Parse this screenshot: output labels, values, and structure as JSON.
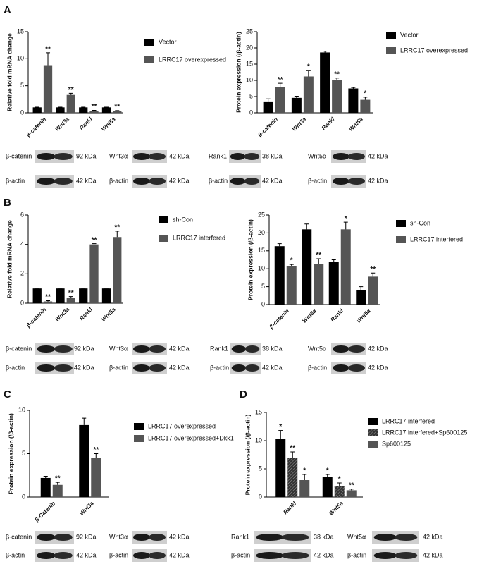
{
  "panels": [
    "A",
    "B",
    "C",
    "D"
  ],
  "chart_data": [
    {
      "type": "bar",
      "y_label": "Relative fold mRNA change",
      "categories": [
        "β-catenin",
        "Wnt3a",
        "Rankl",
        "Wnt5a"
      ],
      "ylim": [
        0,
        15
      ],
      "yticks": [
        0,
        5,
        10,
        15
      ],
      "series": [
        {
          "name": "Vector",
          "color": "#000000",
          "values": [
            1,
            1,
            1,
            1
          ],
          "errors": [
            0.05,
            0.05,
            0.05,
            0.05
          ]
        },
        {
          "name": "LRRC17 overexpressed",
          "color": "#555555",
          "values": [
            8.8,
            3.3,
            0.35,
            0.3
          ],
          "errors": [
            2.3,
            0.3,
            0.1,
            0.1
          ],
          "annotations": [
            "**",
            "**",
            "**",
            "**"
          ]
        }
      ]
    },
    {
      "type": "bar",
      "y_label": "Protein expression (/β-actin)",
      "categories": [
        "β-catenin",
        "Wnt3a",
        "Rankl",
        "Wnt5a"
      ],
      "ylim": [
        0,
        25
      ],
      "yticks": [
        0,
        5,
        10,
        15,
        20,
        25
      ],
      "series": [
        {
          "name": "Vector",
          "color": "#000000",
          "values": [
            3.5,
            4.6,
            18.6,
            7.5
          ],
          "errors": [
            0.8,
            0.5,
            0.4,
            0.3
          ]
        },
        {
          "name": "LRRC17 overexpressed",
          "color": "#555555",
          "values": [
            8,
            11.2,
            10,
            4
          ],
          "errors": [
            1.1,
            1.9,
            0.7,
            0.8
          ],
          "annotations": [
            "**",
            "*",
            "**",
            "*"
          ]
        }
      ]
    },
    {
      "type": "bar",
      "y_label": "Relative fold mRNA change",
      "categories": [
        "β-catenin",
        "Wnt3a",
        "Rankl",
        "Wnt5a"
      ],
      "ylim": [
        0,
        6
      ],
      "yticks": [
        0,
        2,
        4,
        6
      ],
      "series": [
        {
          "name": "sh-Con",
          "color": "#000000",
          "values": [
            1,
            1,
            1,
            1
          ],
          "errors": [
            0.02,
            0.02,
            0.02,
            0.02
          ]
        },
        {
          "name": "LRRC17 interfered",
          "color": "#555555",
          "values": [
            0.12,
            0.35,
            4,
            4.5
          ],
          "errors": [
            0.05,
            0.1,
            0.05,
            0.4
          ],
          "annotations": [
            "**",
            "**",
            "**",
            "**"
          ]
        }
      ]
    },
    {
      "type": "bar",
      "y_label": "Protein expression (/β-actin)",
      "categories": [
        "β-catenin",
        "Wnt3a",
        "Rankl",
        "Wnt5a"
      ],
      "ylim": [
        0,
        25
      ],
      "yticks": [
        0,
        5,
        10,
        15,
        20,
        25
      ],
      "series": [
        {
          "name": "sh-Con",
          "color": "#000000",
          "values": [
            16.3,
            21,
            12,
            4
          ],
          "errors": [
            0.7,
            1.5,
            0.5,
            1
          ]
        },
        {
          "name": "LRRC17 interfered",
          "color": "#555555",
          "values": [
            10.7,
            11.3,
            21,
            7.8
          ],
          "errors": [
            0.5,
            1.5,
            2,
            1
          ],
          "annotations": [
            "*",
            "**",
            "*",
            "**"
          ]
        }
      ]
    },
    {
      "type": "bar",
      "y_label": "Protein expression (/β-actin)",
      "categories": [
        "β-Catenin",
        "Wnt3a"
      ],
      "ylim": [
        0,
        10
      ],
      "yticks": [
        0,
        5,
        10
      ],
      "series": [
        {
          "name": "LRRC17 overexpressed",
          "color": "#000000",
          "values": [
            2.2,
            8.3
          ],
          "errors": [
            0.2,
            0.8
          ]
        },
        {
          "name": "LRRC17 overexpressed+Dkk1",
          "color": "#555555",
          "values": [
            1.4,
            4.5
          ],
          "errors": [
            0.3,
            0.5
          ],
          "annotations": [
            "**",
            "**"
          ]
        }
      ]
    },
    {
      "type": "bar",
      "y_label": "Protein expression (/β-actin)",
      "categories": [
        "Rankl",
        "Wnt5a"
      ],
      "ylim": [
        0,
        15
      ],
      "yticks": [
        0,
        5,
        10,
        15
      ],
      "series": [
        {
          "name": "LRRC17 interfered",
          "color": "#000000",
          "values": [
            10.3,
            3.5
          ],
          "errors": [
            1.5,
            0.5
          ],
          "annotations": [
            "*",
            "*"
          ]
        },
        {
          "name": "LRRC17 interfered+Sp600125",
          "color": "#333333",
          "hatch": true,
          "values": [
            7,
            2
          ],
          "errors": [
            1,
            0.5
          ],
          "annotations": [
            "**",
            "*"
          ]
        },
        {
          "name": "Sp600125",
          "color": "#555555",
          "values": [
            3,
            1.2
          ],
          "errors": [
            1,
            0.2
          ],
          "annotations": [
            "*",
            "**"
          ]
        }
      ]
    }
  ],
  "blots": [
    {
      "top": [
        {
          "name": "β-catenin",
          "kda": "92 kDa"
        },
        {
          "name": "Wnt3α",
          "kda": "42 kDa"
        },
        {
          "name": "Rank1",
          "kda": "38 kDa"
        },
        {
          "name": "Wnt5α",
          "kda": "42 kDa"
        }
      ],
      "bottom": [
        {
          "name": "β-actin",
          "kda": "42 kDa"
        },
        {
          "name": "β-actin",
          "kda": "42 kDa"
        },
        {
          "name": "β-actin",
          "kda": "42 kDa"
        },
        {
          "name": "β-actin",
          "kda": "42 kDa"
        }
      ]
    },
    {
      "top": [
        {
          "name": "β-catenin",
          "kda": "92 kDa"
        },
        {
          "name": "Wnt3α",
          "kda": "42 kDa"
        },
        {
          "name": "Rank1",
          "kda": "38 kDa"
        },
        {
          "name": "Wnt5α",
          "kda": "42 kDa"
        }
      ],
      "bottom": [
        {
          "name": "β-actin",
          "kda": "42 kDa"
        },
        {
          "name": "β-actin",
          "kda": "42 kDa"
        },
        {
          "name": "β-actin",
          "kda": "42 kDa"
        },
        {
          "name": "β-actin",
          "kda": "42 kDa"
        }
      ]
    },
    {
      "top": [
        {
          "name": "β-catenin",
          "kda": "92 kDa"
        },
        {
          "name": "Wnt3α",
          "kda": "42 kDa"
        },
        {
          "name": "Rank1",
          "kda": "38 kDa"
        },
        {
          "name": "Wnt5α",
          "kda": "42 kDa"
        }
      ],
      "bottom": [
        {
          "name": "β-actin",
          "kda": "42 kDa"
        },
        {
          "name": "β-actin",
          "kda": "42 kDa"
        },
        {
          "name": "β-actin",
          "kda": "42 kDa"
        },
        {
          "name": "β-actin",
          "kda": "42 kDa"
        }
      ]
    }
  ]
}
